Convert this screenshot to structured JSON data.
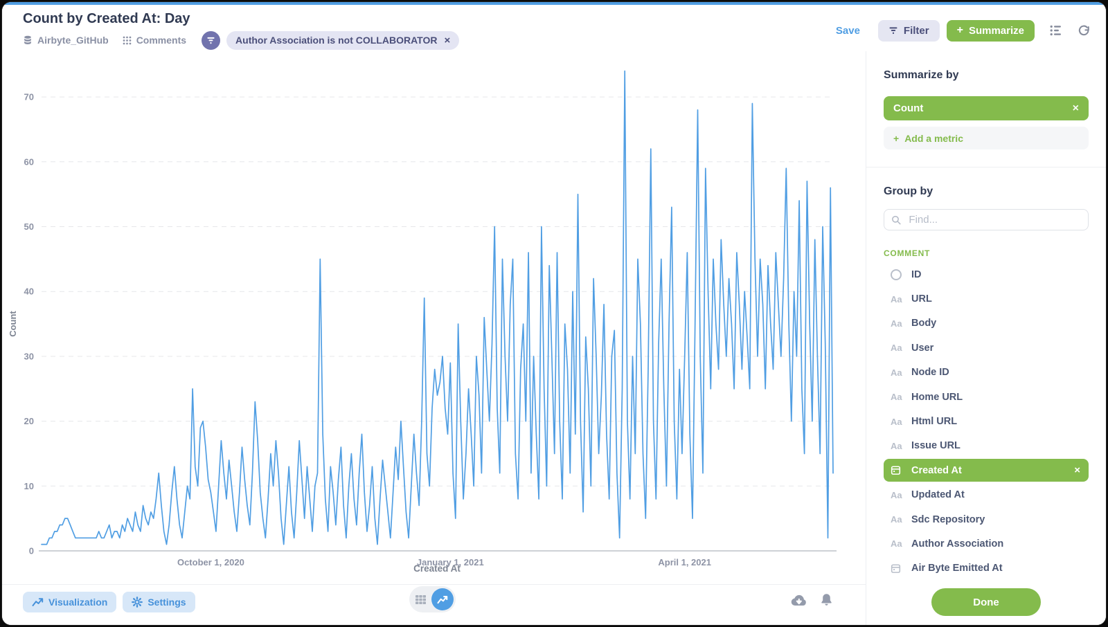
{
  "header": {
    "title": "Count by Created At: Day",
    "database": "Airbyte_GitHub",
    "table": "Comments",
    "filter_chip": "Author Association is not COLLABORATOR",
    "save_label": "Save",
    "filter_label": "Filter",
    "summarize_label": "Summarize"
  },
  "icons": {
    "close": "×",
    "plus": "+",
    "text_field": "Aa"
  },
  "chart_data": {
    "type": "line",
    "title": "Count by Created At: Day",
    "xlabel": "Created At",
    "ylabel": "Count",
    "x_unit": "day",
    "x_start_date": "2020-07-28",
    "x_end_date": "2021-05-28",
    "x_tick_labels": [
      "October 1, 2020",
      "January 1, 2021",
      "April 1, 2021"
    ],
    "x_tick_indices": [
      65,
      157,
      247
    ],
    "y_ticks": [
      0,
      10,
      20,
      30,
      40,
      50,
      60,
      70
    ],
    "ylim": [
      0,
      74
    ],
    "grid": "dashed-horizontal",
    "legend": "none",
    "line_color": "#509ee3",
    "values": [
      1,
      1,
      1,
      2,
      2,
      3,
      3,
      4,
      4,
      5,
      5,
      4,
      3,
      2,
      2,
      2,
      2,
      2,
      2,
      2,
      2,
      2,
      3,
      2,
      2,
      3,
      4,
      2,
      3,
      3,
      2,
      4,
      3,
      5,
      4,
      3,
      6,
      4,
      3,
      7,
      5,
      4,
      6,
      5,
      8,
      12,
      7,
      3,
      1,
      4,
      9,
      13,
      8,
      4,
      2,
      6,
      10,
      8,
      25,
      13,
      10,
      19,
      20,
      16,
      11,
      9,
      6,
      3,
      10,
      17,
      12,
      8,
      14,
      10,
      6,
      3,
      9,
      16,
      11,
      7,
      4,
      12,
      23,
      17,
      9,
      5,
      2,
      8,
      15,
      10,
      17,
      12,
      5,
      1,
      7,
      13,
      6,
      2,
      9,
      17,
      11,
      5,
      13,
      8,
      3,
      10,
      12,
      45,
      18,
      8,
      3,
      13,
      9,
      4,
      11,
      16,
      7,
      2,
      10,
      15,
      8,
      4,
      12,
      18,
      9,
      3,
      7,
      13,
      5,
      1,
      8,
      14,
      10,
      6,
      2,
      9,
      16,
      11,
      20,
      13,
      6,
      2,
      10,
      18,
      12,
      7,
      20,
      39,
      15,
      10,
      22,
      28,
      24,
      26,
      30,
      22,
      18,
      29,
      12,
      5,
      35,
      20,
      8,
      15,
      25,
      18,
      10,
      30,
      24,
      12,
      36,
      28,
      20,
      32,
      50,
      22,
      12,
      45,
      30,
      20,
      38,
      45,
      15,
      8,
      28,
      35,
      20,
      46,
      12,
      30,
      18,
      8,
      50,
      25,
      10,
      44,
      30,
      15,
      46,
      20,
      8,
      35,
      28,
      12,
      40,
      18,
      55,
      20,
      6,
      33,
      25,
      10,
      42,
      30,
      15,
      24,
      38,
      18,
      8,
      30,
      34,
      12,
      2,
      25,
      74,
      20,
      8,
      30,
      15,
      45,
      35,
      15,
      5,
      28,
      62,
      20,
      8,
      32,
      45,
      25,
      10,
      35,
      53,
      20,
      8,
      28,
      15,
      30,
      46,
      18,
      5,
      35,
      68,
      30,
      12,
      59,
      40,
      25,
      45,
      35,
      28,
      48,
      38,
      30,
      42,
      35,
      25,
      46,
      38,
      28,
      40,
      33,
      25,
      69,
      45,
      30,
      45,
      38,
      25,
      44,
      35,
      28,
      46,
      38,
      30,
      42,
      59,
      35,
      20,
      40,
      30,
      54,
      25,
      15,
      57,
      35,
      20,
      48,
      30,
      15,
      50,
      32,
      2,
      56,
      12
    ]
  },
  "footer": {
    "visualization_label": "Visualization",
    "settings_label": "Settings"
  },
  "sidebar": {
    "summarize_heading": "Summarize by",
    "metric": "Count",
    "add_metric_label": "Add a metric",
    "groupby_heading": "Group by",
    "search_placeholder": "Find...",
    "section": "COMMENT",
    "fields": [
      {
        "label": "ID",
        "icon": "circle",
        "selected": false
      },
      {
        "label": "URL",
        "icon": "text",
        "selected": false
      },
      {
        "label": "Body",
        "icon": "text",
        "selected": false
      },
      {
        "label": "User",
        "icon": "text",
        "selected": false
      },
      {
        "label": "Node ID",
        "icon": "text",
        "selected": false
      },
      {
        "label": "Home URL",
        "icon": "text",
        "selected": false
      },
      {
        "label": "Html URL",
        "icon": "text",
        "selected": false
      },
      {
        "label": "Issue URL",
        "icon": "text",
        "selected": false
      },
      {
        "label": "Created At",
        "icon": "calendar",
        "selected": true
      },
      {
        "label": "Updated At",
        "icon": "text",
        "selected": false
      },
      {
        "label": "Sdc Repository",
        "icon": "text",
        "selected": false
      },
      {
        "label": "Author Association",
        "icon": "text",
        "selected": false
      },
      {
        "label": "Air Byte Emitted At",
        "icon": "calendar",
        "selected": false
      }
    ],
    "done_label": "Done"
  }
}
